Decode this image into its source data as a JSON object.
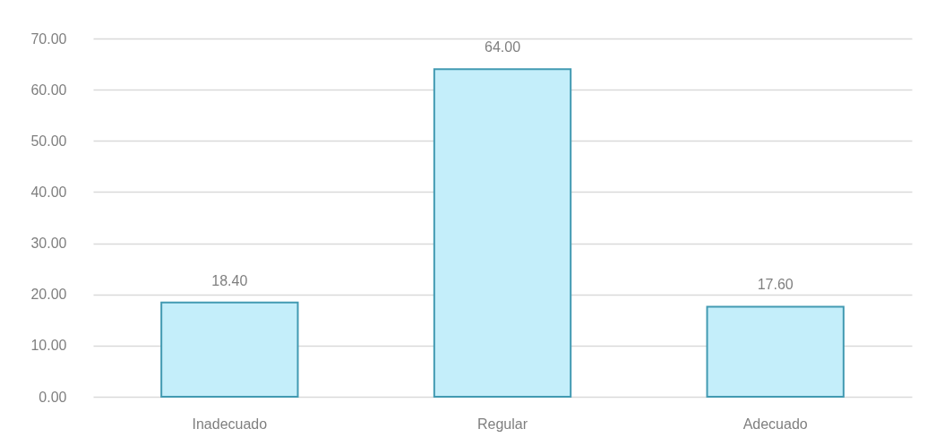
{
  "chart_data": {
    "type": "bar",
    "categories": [
      "Inadecuado",
      "Regular",
      "Adecuado"
    ],
    "values": [
      18.4,
      64.0,
      17.6
    ],
    "value_labels": [
      "18.40",
      "64.00",
      "17.60"
    ],
    "color": "#c4eefa",
    "ylim": [
      0,
      70
    ],
    "yticks": [
      {
        "value": 0,
        "label": "0.00"
      },
      {
        "value": 10,
        "label": "10.00"
      },
      {
        "value": 20,
        "label": "20.00"
      },
      {
        "value": 30,
        "label": "30.00"
      },
      {
        "value": 40,
        "label": "40.00"
      },
      {
        "value": 50,
        "label": "50.00"
      },
      {
        "value": 60,
        "label": "60.00"
      },
      {
        "value": 70,
        "label": "70.00"
      }
    ],
    "grid": "y"
  }
}
